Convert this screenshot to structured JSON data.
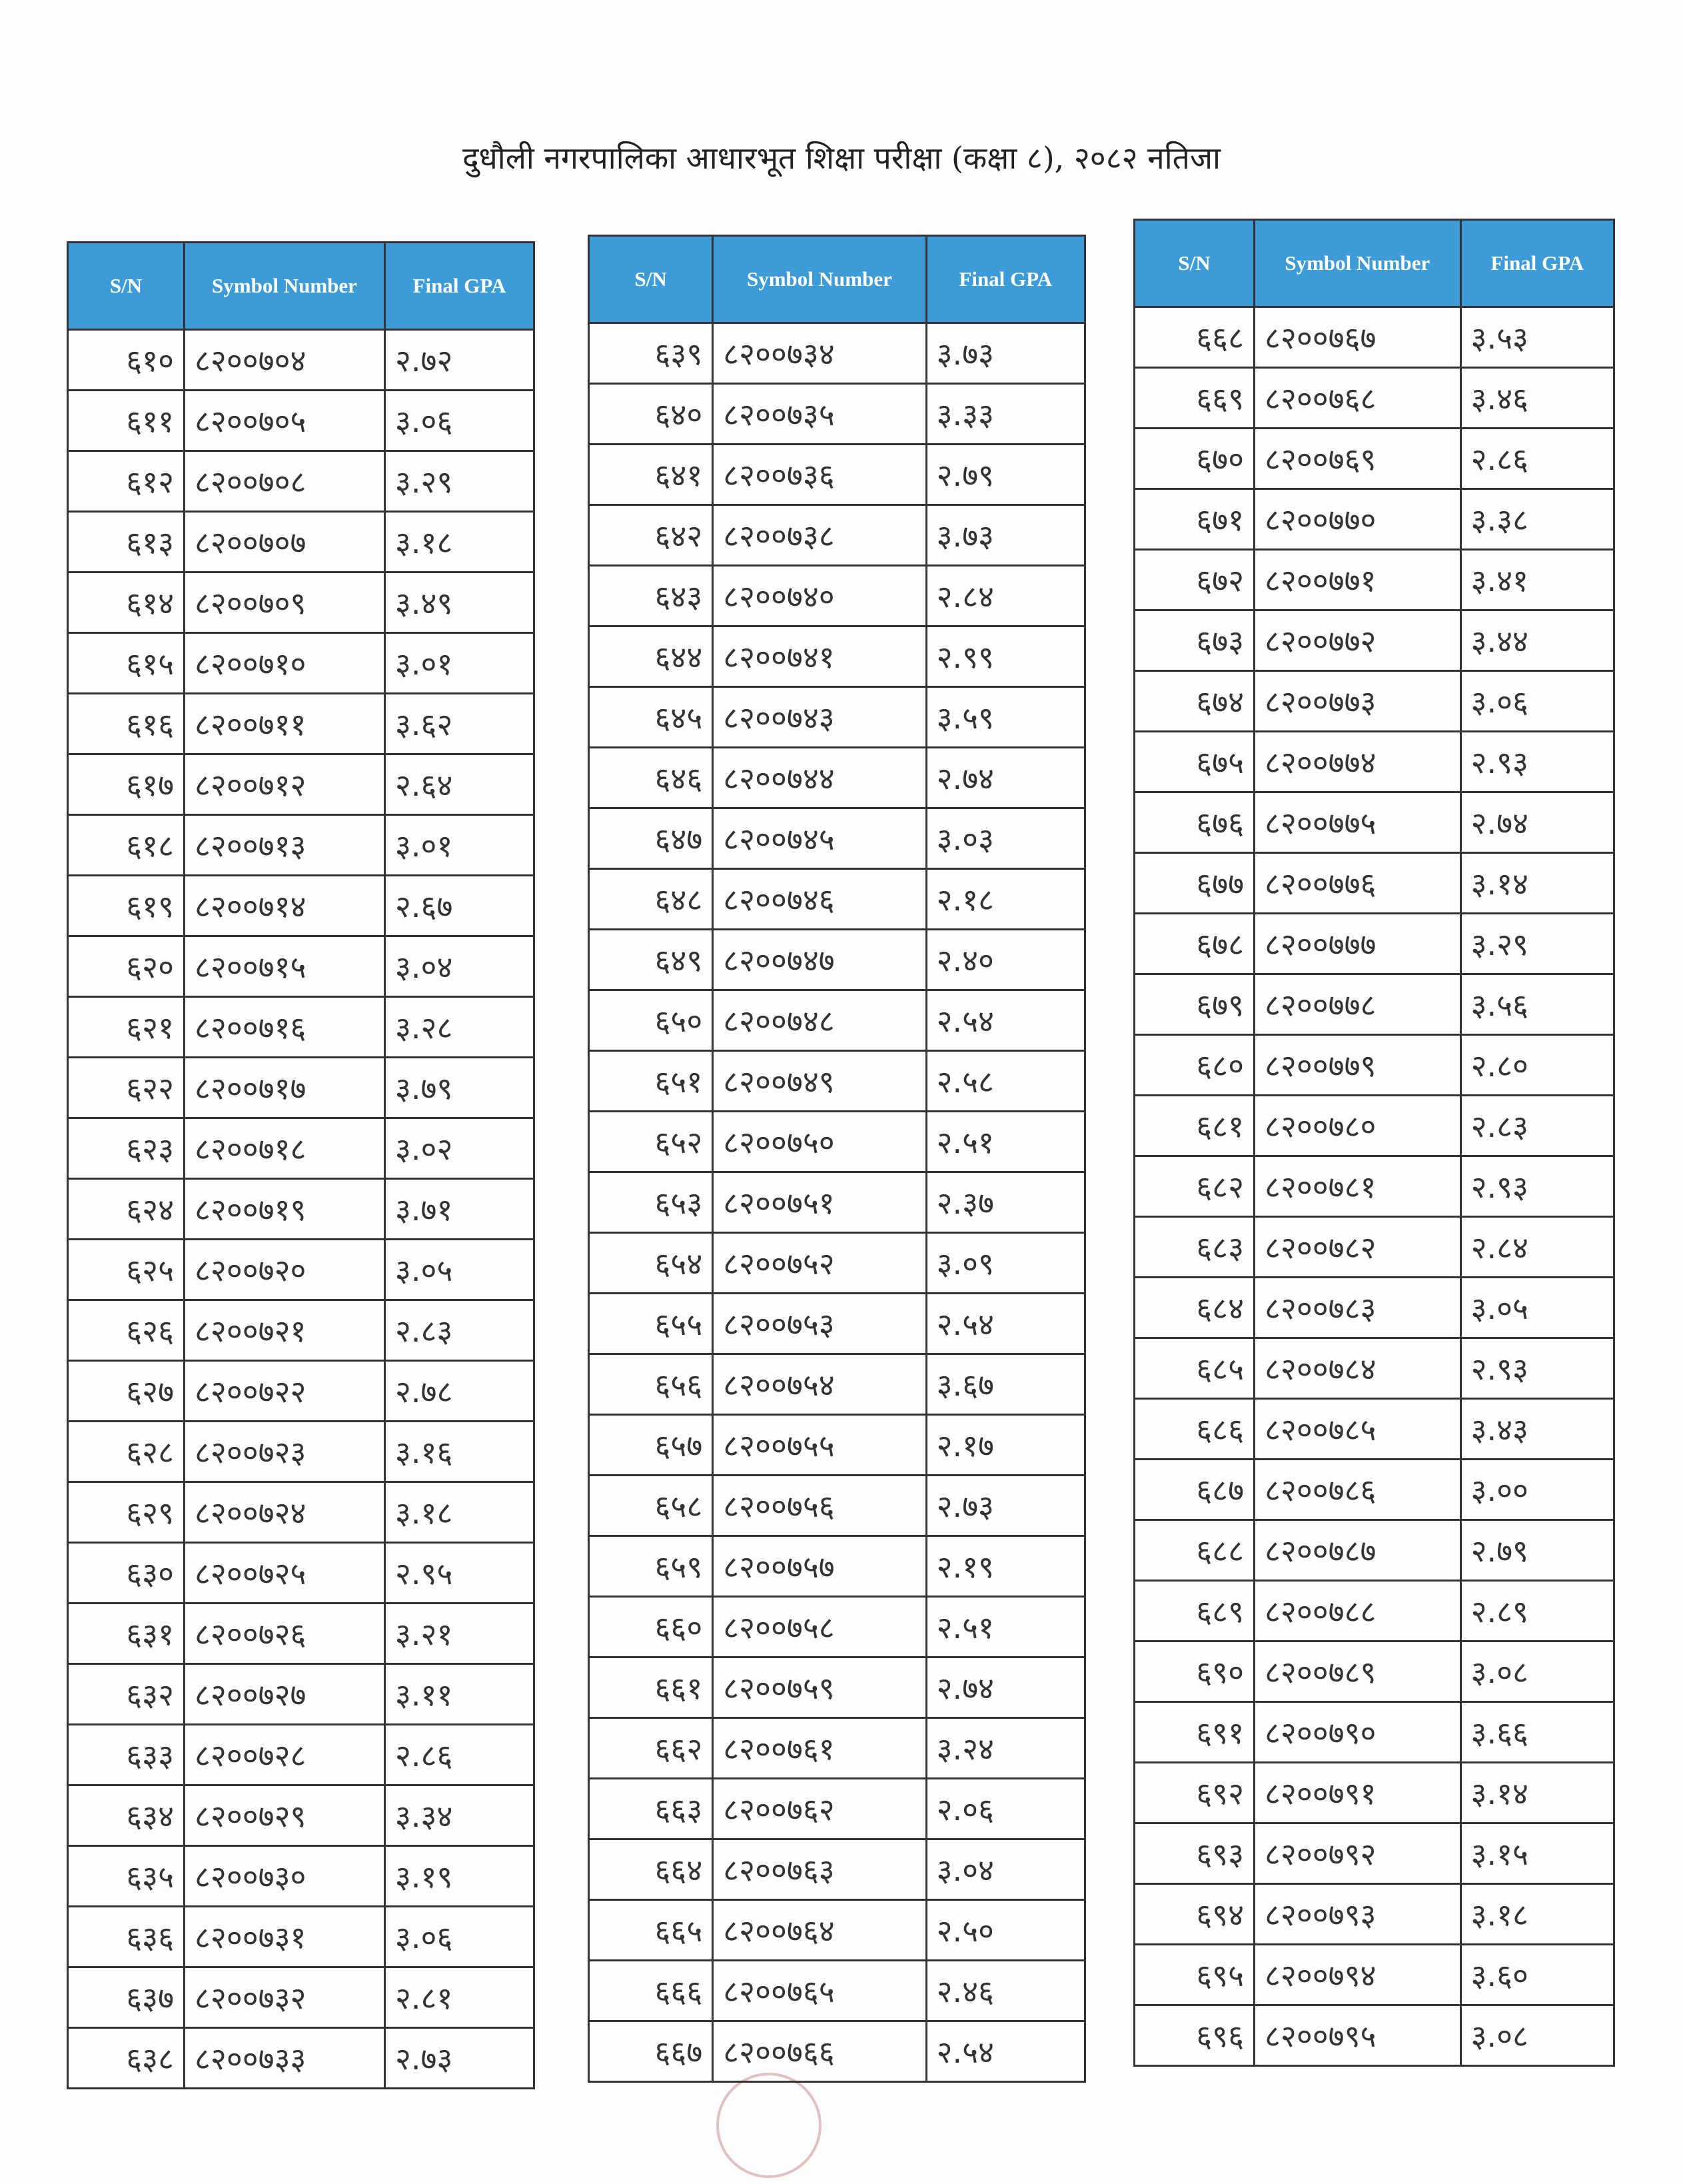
{
  "title": "दुधौली नगरपालिका आधारभूत शिक्षा परीक्षा (कक्षा ८), २०८२ नतिजा",
  "tables": [
    {
      "headers": [
        "S/N",
        "Symbol Number",
        "Final GPA"
      ],
      "rows": [
        [
          "६१०",
          "८२००७०४",
          "२.७२"
        ],
        [
          "६११",
          "८२००७०५",
          "३.०६"
        ],
        [
          "६१२",
          "८२००७०८",
          "३.२९"
        ],
        [
          "६१३",
          "८२००७०७",
          "३.१८"
        ],
        [
          "६१४",
          "८२००७०९",
          "३.४९"
        ],
        [
          "६१५",
          "८२००७१०",
          "३.०१"
        ],
        [
          "६१६",
          "८२००७११",
          "३.६२"
        ],
        [
          "६१७",
          "८२००७१२",
          "२.६४"
        ],
        [
          "६१८",
          "८२००७१३",
          "३.०१"
        ],
        [
          "६१९",
          "८२००७१४",
          "२.६७"
        ],
        [
          "६२०",
          "८२००७१५",
          "३.०४"
        ],
        [
          "६२१",
          "८२००७१६",
          "३.२८"
        ],
        [
          "६२२",
          "८२००७१७",
          "३.७९"
        ],
        [
          "६२३",
          "८२००७१८",
          "३.०२"
        ],
        [
          "६२४",
          "८२००७१९",
          "३.७१"
        ],
        [
          "६२५",
          "८२००७२०",
          "३.०५"
        ],
        [
          "६२६",
          "८२००७२१",
          "२.८३"
        ],
        [
          "६२७",
          "८२००७२२",
          "२.७८"
        ],
        [
          "६२८",
          "८२००७२३",
          "३.१६"
        ],
        [
          "६२९",
          "८२००७२४",
          "३.१८"
        ],
        [
          "६३०",
          "८२००७२५",
          "२.९५"
        ],
        [
          "६३१",
          "८२००७२६",
          "३.२१"
        ],
        [
          "६३२",
          "८२००७२७",
          "३.११"
        ],
        [
          "६३३",
          "८२००७२८",
          "२.८६"
        ],
        [
          "६३४",
          "८२००७२९",
          "३.३४"
        ],
        [
          "६३५",
          "८२००७३०",
          "३.१९"
        ],
        [
          "६३६",
          "८२००७३१",
          "३.०६"
        ],
        [
          "६३७",
          "८२००७३२",
          "२.८१"
        ],
        [
          "६३८",
          "८२००७३३",
          "२.७३"
        ]
      ]
    },
    {
      "headers": [
        "S/N",
        "Symbol Number",
        "Final GPA"
      ],
      "rows": [
        [
          "६३९",
          "८२००७३४",
          "३.७३"
        ],
        [
          "६४०",
          "८२००७३५",
          "३.३३"
        ],
        [
          "६४१",
          "८२००७३६",
          "२.७९"
        ],
        [
          "६४२",
          "८२००७३८",
          "३.७३"
        ],
        [
          "६४३",
          "८२००७४०",
          "२.८४"
        ],
        [
          "६४४",
          "८२००७४१",
          "२.९९"
        ],
        [
          "६४५",
          "८२००७४३",
          "३.५९"
        ],
        [
          "६४६",
          "८२००७४४",
          "२.७४"
        ],
        [
          "६४७",
          "८२००७४५",
          "३.०३"
        ],
        [
          "६४८",
          "८२००७४६",
          "२.१८"
        ],
        [
          "६४९",
          "८२००७४७",
          "२.४०"
        ],
        [
          "६५०",
          "८२००७४८",
          "२.५४"
        ],
        [
          "६५१",
          "८२००७४९",
          "२.५८"
        ],
        [
          "६५२",
          "८२००७५०",
          "२.५१"
        ],
        [
          "६५३",
          "८२००७५१",
          "२.३७"
        ],
        [
          "६५४",
          "८२००७५२",
          "३.०९"
        ],
        [
          "६५५",
          "८२००७५३",
          "२.५४"
        ],
        [
          "६५६",
          "८२००७५४",
          "३.६७"
        ],
        [
          "६५७",
          "८२००७५५",
          "२.१७"
        ],
        [
          "६५८",
          "८२००७५६",
          "२.७३"
        ],
        [
          "६५९",
          "८२००७५७",
          "२.१९"
        ],
        [
          "६६०",
          "८२००७५८",
          "२.५१"
        ],
        [
          "६६१",
          "८२००७५९",
          "२.७४"
        ],
        [
          "६६२",
          "८२००७६१",
          "३.२४"
        ],
        [
          "६६३",
          "८२००७६२",
          "२.०६"
        ],
        [
          "६६४",
          "८२००७६३",
          "३.०४"
        ],
        [
          "६६५",
          "८२००७६४",
          "२.५०"
        ],
        [
          "६६६",
          "८२००७६५",
          "२.४६"
        ],
        [
          "६६७",
          "८२००७६६",
          "२.५४"
        ]
      ]
    },
    {
      "headers": [
        "S/N",
        "Symbol Number",
        "Final GPA"
      ],
      "rows": [
        [
          "६६८",
          "८२००७६७",
          "३.५३"
        ],
        [
          "६६९",
          "८२००७६८",
          "३.४६"
        ],
        [
          "६७०",
          "८२००७६९",
          "२.८६"
        ],
        [
          "६७१",
          "८२००७७०",
          "३.३८"
        ],
        [
          "६७२",
          "८२००७७१",
          "३.४१"
        ],
        [
          "६७३",
          "८२००७७२",
          "३.४४"
        ],
        [
          "६७४",
          "८२००७७३",
          "३.०६"
        ],
        [
          "६७५",
          "८२००७७४",
          "२.९३"
        ],
        [
          "६७६",
          "८२००७७५",
          "२.७४"
        ],
        [
          "६७७",
          "८२००७७६",
          "३.१४"
        ],
        [
          "६७८",
          "८२००७७७",
          "३.२९"
        ],
        [
          "६७९",
          "८२००७७८",
          "३.५६"
        ],
        [
          "६८०",
          "८२००७७९",
          "२.८०"
        ],
        [
          "६८१",
          "८२००७८०",
          "२.८३"
        ],
        [
          "६८२",
          "८२००७८१",
          "२.९३"
        ],
        [
          "६८३",
          "८२००७८२",
          "२.८४"
        ],
        [
          "६८४",
          "८२००७८३",
          "३.०५"
        ],
        [
          "६८५",
          "८२००७८४",
          "२.९३"
        ],
        [
          "६८६",
          "८२००७८५",
          "३.४३"
        ],
        [
          "६८७",
          "८२००७८६",
          "३.००"
        ],
        [
          "६८८",
          "८२००७८७",
          "२.७९"
        ],
        [
          "६८९",
          "८२००७८८",
          "२.८९"
        ],
        [
          "६९०",
          "८२००७८९",
          "३.०८"
        ],
        [
          "६९१",
          "८२००७९०",
          "३.६६"
        ],
        [
          "६९२",
          "८२००७९१",
          "३.१४"
        ],
        [
          "६९३",
          "८२००७९२",
          "३.१५"
        ],
        [
          "६९४",
          "८२००७९३",
          "३.१८"
        ],
        [
          "६९५",
          "८२००७९४",
          "३.६०"
        ],
        [
          "६९६",
          "८२००७९५",
          "३.०८"
        ]
      ]
    }
  ]
}
